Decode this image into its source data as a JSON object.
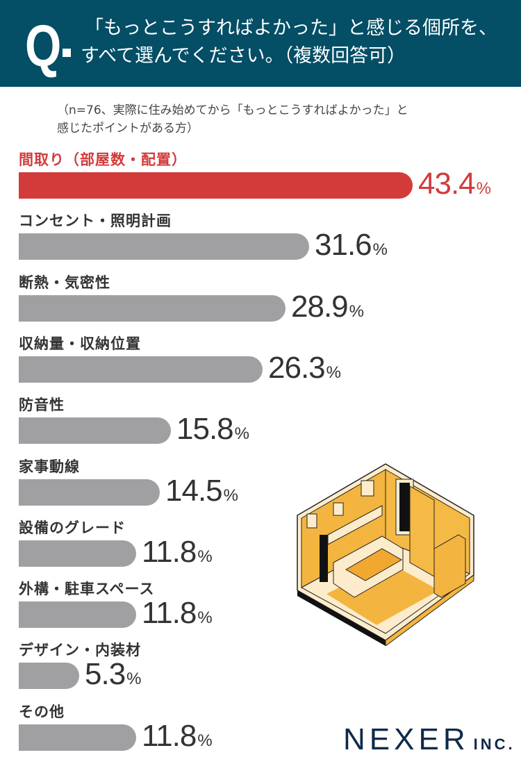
{
  "header": {
    "q_mark": "Q",
    "line1": "「もっとこうすればよかった」と感じる個所を、",
    "line2": "すべて選んでください。（複数回答可）"
  },
  "subtitle": {
    "line1": "（n=76、実際に住み始めてから「もっとこうすればよかった」と",
    "line2": "感じたポイントがある方）"
  },
  "colors": {
    "header": "#044e66",
    "highlight": "#d33b3b",
    "bar": "#a0a0a3",
    "logo": "#0f2a4a"
  },
  "chart_data": {
    "type": "bar",
    "orientation": "horizontal",
    "unit": "%",
    "categories": [
      "間取り（部屋数・配置）",
      "コンセント・照明計画",
      "断熱・気密性",
      "収納量・収納位置",
      "防音性",
      "家事動線",
      "設備のグレード",
      "外構・駐車スペース",
      "デザイン・内装材",
      "その他"
    ],
    "values": [
      43.4,
      31.6,
      28.9,
      26.3,
      15.8,
      14.5,
      11.8,
      11.8,
      5.3,
      11.8
    ],
    "value_labels": [
      "43.4",
      "31.6",
      "28.9",
      "26.3",
      "15.8",
      "14.5",
      "11.8",
      "11.8",
      "5.3",
      "11.8"
    ],
    "highlight_index": 0
  },
  "logo": {
    "main": "NEXER",
    "suffix": "INC."
  }
}
